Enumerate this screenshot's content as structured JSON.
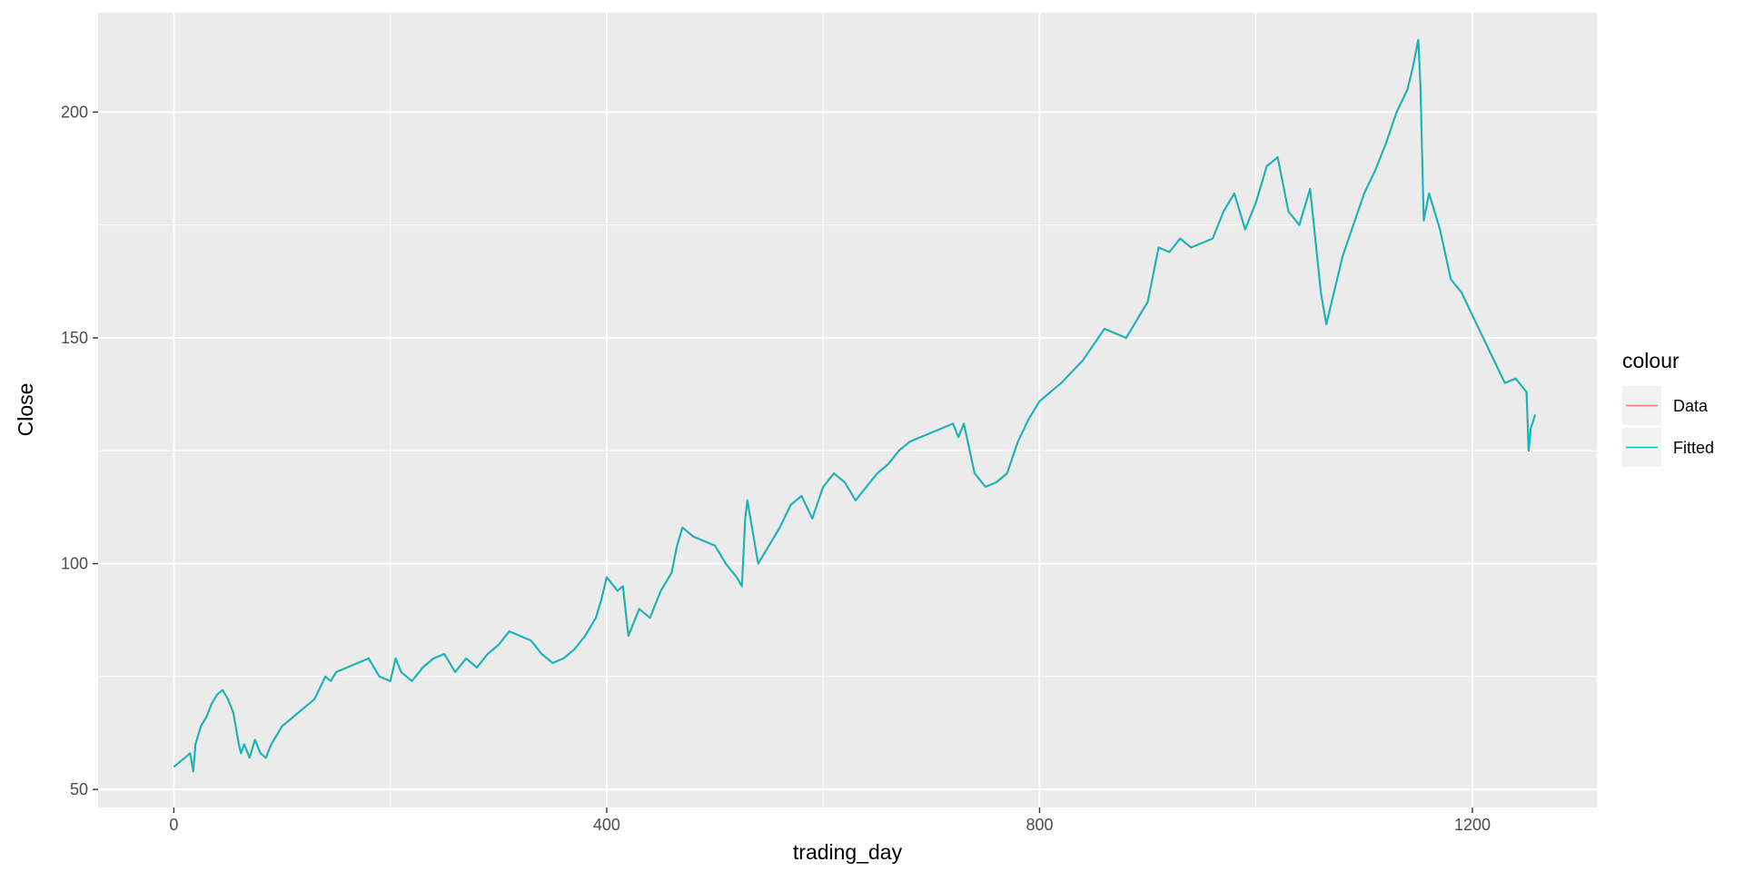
{
  "chart_data": {
    "type": "line",
    "xlabel": "trading_day",
    "ylabel": "Close",
    "xlim": [
      -70,
      1315
    ],
    "ylim": [
      46,
      222
    ],
    "x_ticks": [
      0,
      400,
      800,
      1200
    ],
    "y_ticks": [
      50,
      100,
      150,
      200
    ],
    "x_tick_labels": [
      "0",
      "400",
      "800",
      "1200"
    ],
    "y_tick_labels": [
      "50",
      "100",
      "150",
      "200"
    ],
    "grid": true,
    "legend": {
      "title": "colour",
      "placement": "right",
      "entries": [
        {
          "label": "Data",
          "color": "#F8766D"
        },
        {
          "label": "Fitted",
          "color": "#00BFC4"
        }
      ]
    },
    "x": [
      0,
      10,
      15,
      18,
      20,
      25,
      30,
      35,
      40,
      45,
      50,
      55,
      60,
      62,
      65,
      70,
      75,
      80,
      85,
      90,
      95,
      100,
      110,
      120,
      130,
      140,
      145,
      150,
      160,
      170,
      180,
      190,
      200,
      205,
      210,
      220,
      230,
      240,
      250,
      260,
      270,
      280,
      290,
      300,
      310,
      320,
      330,
      340,
      350,
      360,
      370,
      380,
      390,
      395,
      400,
      410,
      415,
      420,
      430,
      440,
      450,
      460,
      465,
      470,
      480,
      490,
      500,
      510,
      520,
      525,
      528,
      530,
      540,
      550,
      560,
      570,
      580,
      590,
      600,
      610,
      620,
      630,
      640,
      650,
      660,
      670,
      680,
      690,
      700,
      710,
      720,
      725,
      730,
      740,
      750,
      760,
      770,
      780,
      790,
      800,
      820,
      840,
      860,
      880,
      900,
      910,
      920,
      930,
      940,
      960,
      970,
      980,
      990,
      1000,
      1010,
      1020,
      1030,
      1040,
      1050,
      1060,
      1065,
      1070,
      1080,
      1090,
      1100,
      1110,
      1120,
      1130,
      1140,
      1145,
      1150,
      1152,
      1155,
      1160,
      1170,
      1180,
      1190,
      1200,
      1210,
      1220,
      1230,
      1240,
      1250,
      1252,
      1254,
      1258
    ],
    "series": [
      {
        "name": "Data",
        "values": [
          55,
          57,
          58,
          54,
          60,
          64,
          66,
          69,
          71,
          72,
          70,
          67,
          60,
          58,
          60,
          57,
          61,
          58,
          57,
          60,
          62,
          64,
          66,
          68,
          70,
          75,
          74,
          76,
          77,
          78,
          79,
          75,
          74,
          79,
          76,
          74,
          77,
          79,
          80,
          76,
          79,
          77,
          80,
          82,
          85,
          84,
          83,
          80,
          78,
          79,
          81,
          84,
          88,
          92,
          97,
          94,
          95,
          84,
          90,
          88,
          94,
          98,
          104,
          108,
          106,
          105,
          104,
          100,
          97,
          95,
          110,
          114,
          100,
          104,
          108,
          113,
          115,
          110,
          117,
          120,
          118,
          114,
          117,
          120,
          122,
          125,
          127,
          128,
          129,
          130,
          131,
          128,
          131,
          120,
          117,
          118,
          120,
          127,
          132,
          136,
          140,
          145,
          152,
          150,
          158,
          170,
          169,
          172,
          170,
          172,
          178,
          182,
          174,
          180,
          188,
          190,
          178,
          175,
          183,
          160,
          153,
          158,
          168,
          175,
          182,
          187,
          193,
          200,
          205,
          210,
          216,
          206,
          176,
          182,
          174,
          163,
          160,
          155,
          150,
          145,
          140,
          141,
          138,
          125,
          130,
          133
        ]
      },
      {
        "name": "Fitted",
        "values": [
          55,
          57,
          58,
          54,
          60,
          64,
          66,
          69,
          71,
          72,
          70,
          67,
          60,
          58,
          60,
          57,
          61,
          58,
          57,
          60,
          62,
          64,
          66,
          68,
          70,
          75,
          74,
          76,
          77,
          78,
          79,
          75,
          74,
          79,
          76,
          74,
          77,
          79,
          80,
          76,
          79,
          77,
          80,
          82,
          85,
          84,
          83,
          80,
          78,
          79,
          81,
          84,
          88,
          92,
          97,
          94,
          95,
          84,
          90,
          88,
          94,
          98,
          104,
          108,
          106,
          105,
          104,
          100,
          97,
          95,
          110,
          114,
          100,
          104,
          108,
          113,
          115,
          110,
          117,
          120,
          118,
          114,
          117,
          120,
          122,
          125,
          127,
          128,
          129,
          130,
          131,
          128,
          131,
          120,
          117,
          118,
          120,
          127,
          132,
          136,
          140,
          145,
          152,
          150,
          158,
          170,
          169,
          172,
          170,
          172,
          178,
          182,
          174,
          180,
          188,
          190,
          178,
          175,
          183,
          160,
          153,
          158,
          168,
          175,
          182,
          187,
          193,
          200,
          205,
          210,
          216,
          206,
          176,
          182,
          174,
          163,
          160,
          155,
          150,
          145,
          140,
          141,
          138,
          125,
          130,
          133
        ]
      }
    ]
  }
}
